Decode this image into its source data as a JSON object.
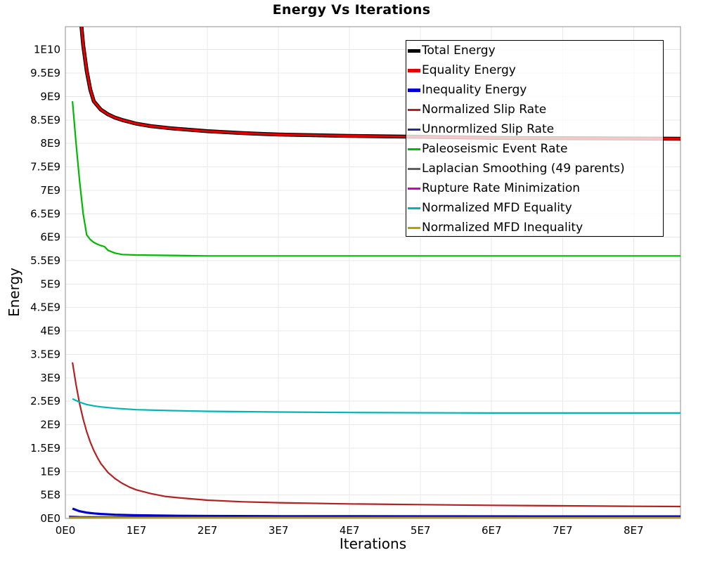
{
  "window": {
    "background": "#ffffff"
  },
  "chart_data": {
    "type": "line",
    "title": "Energy Vs Iterations",
    "xlabel": "Iterations",
    "ylabel": "Energy",
    "xlim": [
      0,
      86600000.0
    ],
    "ylim": [
      0,
      10490000000.0
    ],
    "grid": true,
    "grid_color": "#e8e8e8",
    "border_color": "#909090",
    "legend_position": "top-right",
    "legend_border_color": "#000000",
    "x_ticks": [
      {
        "v": 0,
        "label": "0E0"
      },
      {
        "v": 10000000.0,
        "label": "1E7"
      },
      {
        "v": 20000000.0,
        "label": "2E7"
      },
      {
        "v": 30000000.0,
        "label": "3E7"
      },
      {
        "v": 40000000.0,
        "label": "4E7"
      },
      {
        "v": 50000000.0,
        "label": "5E7"
      },
      {
        "v": 60000000.0,
        "label": "6E7"
      },
      {
        "v": 70000000.0,
        "label": "7E7"
      },
      {
        "v": 80000000.0,
        "label": "8E7"
      }
    ],
    "y_ticks": [
      {
        "v": 0,
        "label": "0E0"
      },
      {
        "v": 500000000.0,
        "label": "5E8"
      },
      {
        "v": 1000000000.0,
        "label": "1E9"
      },
      {
        "v": 1500000000.0,
        "label": "1.5E9"
      },
      {
        "v": 2000000000.0,
        "label": "2E9"
      },
      {
        "v": 2500000000.0,
        "label": "2.5E9"
      },
      {
        "v": 3000000000.0,
        "label": "3E9"
      },
      {
        "v": 3500000000.0,
        "label": "3.5E9"
      },
      {
        "v": 4000000000.0,
        "label": "4E9"
      },
      {
        "v": 4500000000.0,
        "label": "4.5E9"
      },
      {
        "v": 5000000000.0,
        "label": "5E9"
      },
      {
        "v": 5500000000.0,
        "label": "5.5E9"
      },
      {
        "v": 6000000000.0,
        "label": "6E9"
      },
      {
        "v": 6500000000.0,
        "label": "6.5E9"
      },
      {
        "v": 7000000000.0,
        "label": "7E9"
      },
      {
        "v": 7500000000.0,
        "label": "7.5E9"
      },
      {
        "v": 8000000000.0,
        "label": "8E9"
      },
      {
        "v": 8500000000.0,
        "label": "8.5E9"
      },
      {
        "v": 9000000000.0,
        "label": "9E9"
      },
      {
        "v": 9500000000.0,
        "label": "9.5E9"
      },
      {
        "v": 10000000000.0,
        "label": "1E10"
      }
    ],
    "series": [
      {
        "name": "Total Energy",
        "color": "#000000",
        "line_width": 5.5,
        "legend_thick": true,
        "points": [
          [
            2200000.0,
            10600000000.0
          ],
          [
            2500000.0,
            10100000000.0
          ],
          [
            3000000.0,
            9550000000.0
          ],
          [
            3500000.0,
            9150000000.0
          ],
          [
            4000000.0,
            8900000000.0
          ],
          [
            5000000.0,
            8720000000.0
          ],
          [
            6000000.0,
            8620000000.0
          ],
          [
            7000000.0,
            8550000000.0
          ],
          [
            8000000.0,
            8500000000.0
          ],
          [
            10000000.0,
            8420000000.0
          ],
          [
            12000000.0,
            8370000000.0
          ],
          [
            15000000.0,
            8320000000.0
          ],
          [
            20000000.0,
            8260000000.0
          ],
          [
            25000000.0,
            8220000000.0
          ],
          [
            30000000.0,
            8190000000.0
          ],
          [
            40000000.0,
            8160000000.0
          ],
          [
            50000000.0,
            8140000000.0
          ],
          [
            60000000.0,
            8120000000.0
          ],
          [
            70000000.0,
            8110000000.0
          ],
          [
            86600000.0,
            8100000000.0
          ]
        ]
      },
      {
        "name": "Equality Energy",
        "color": "#e60000",
        "line_width": 3.2,
        "legend_thick": true,
        "points": [
          [
            2200000.0,
            10600000000.0
          ],
          [
            2500000.0,
            10100000000.0
          ],
          [
            3000000.0,
            9550000000.0
          ],
          [
            3500000.0,
            9150000000.0
          ],
          [
            4000000.0,
            8900000000.0
          ],
          [
            5000000.0,
            8720000000.0
          ],
          [
            6000000.0,
            8620000000.0
          ],
          [
            7000000.0,
            8550000000.0
          ],
          [
            8000000.0,
            8500000000.0
          ],
          [
            10000000.0,
            8420000000.0
          ],
          [
            12000000.0,
            8370000000.0
          ],
          [
            15000000.0,
            8320000000.0
          ],
          [
            20000000.0,
            8260000000.0
          ],
          [
            25000000.0,
            8220000000.0
          ],
          [
            30000000.0,
            8190000000.0
          ],
          [
            40000000.0,
            8160000000.0
          ],
          [
            50000000.0,
            8140000000.0
          ],
          [
            60000000.0,
            8120000000.0
          ],
          [
            70000000.0,
            8110000000.0
          ],
          [
            86600000.0,
            8100000000.0
          ]
        ]
      },
      {
        "name": "Inequality Energy",
        "color": "#0000cd",
        "line_width": 3.2,
        "legend_thick": true,
        "points": [
          [
            1000000.0,
            210000000.0
          ],
          [
            2000000.0,
            155000000.0
          ],
          [
            3000000.0,
            125000000.0
          ],
          [
            4000000.0,
            108000000.0
          ],
          [
            5000000.0,
            96000000.0
          ],
          [
            7000000.0,
            80000000.0
          ],
          [
            10000000.0,
            68000000.0
          ],
          [
            15000000.0,
            58000000.0
          ],
          [
            20000000.0,
            53000000.0
          ],
          [
            30000000.0,
            48000000.0
          ],
          [
            50000000.0,
            45000000.0
          ],
          [
            86600000.0,
            44000000.0
          ]
        ]
      },
      {
        "name": "Normalized Slip Rate",
        "color": "#b22222",
        "line_width": 2.2,
        "legend_thick": false,
        "points": [
          [
            1000000.0,
            3330000000.0
          ],
          [
            1500000.0,
            2850000000.0
          ],
          [
            2000000.0,
            2450000000.0
          ],
          [
            2500000.0,
            2120000000.0
          ],
          [
            3000000.0,
            1850000000.0
          ],
          [
            3500000.0,
            1630000000.0
          ],
          [
            4000000.0,
            1450000000.0
          ],
          [
            4500000.0,
            1300000000.0
          ],
          [
            5000000.0,
            1170000000.0
          ],
          [
            6000000.0,
            980000000.0
          ],
          [
            7000000.0,
            850000000.0
          ],
          [
            8000000.0,
            750000000.0
          ],
          [
            9000000.0,
            670000000.0
          ],
          [
            10000000.0,
            610000000.0
          ],
          [
            12000000.0,
            530000000.0
          ],
          [
            14000000.0,
            470000000.0
          ],
          [
            16000000.0,
            440000000.0
          ],
          [
            20000000.0,
            390000000.0
          ],
          [
            25000000.0,
            355000000.0
          ],
          [
            30000000.0,
            335000000.0
          ],
          [
            40000000.0,
            310000000.0
          ],
          [
            50000000.0,
            295000000.0
          ],
          [
            60000000.0,
            280000000.0
          ],
          [
            70000000.0,
            270000000.0
          ],
          [
            80000000.0,
            260000000.0
          ],
          [
            86600000.0,
            255000000.0
          ]
        ]
      },
      {
        "name": "Unnormlized Slip Rate",
        "color": "#28289b",
        "line_width": 2.2,
        "legend_thick": false,
        "points": [
          [
            500000.0,
            45000000.0
          ],
          [
            2000000.0,
            36000000.0
          ],
          [
            5000000.0,
            32000000.0
          ],
          [
            10000000.0,
            30000000.0
          ],
          [
            86600000.0,
            28000000.0
          ]
        ]
      },
      {
        "name": "Paleoseismic Event Rate",
        "color": "#00b900",
        "line_width": 2.2,
        "legend_thick": false,
        "points": [
          [
            1000000.0,
            8900000000.0
          ],
          [
            1500000.0,
            8000000000.0
          ],
          [
            2000000.0,
            7200000000.0
          ],
          [
            2500000.0,
            6500000000.0
          ],
          [
            3000000.0,
            6050000000.0
          ],
          [
            3500000.0,
            5950000000.0
          ],
          [
            4000000.0,
            5890000000.0
          ],
          [
            4500000.0,
            5850000000.0
          ],
          [
            5000000.0,
            5820000000.0
          ],
          [
            5500000.0,
            5800000000.0
          ],
          [
            6000000.0,
            5720000000.0
          ],
          [
            7000000.0,
            5660000000.0
          ],
          [
            8000000.0,
            5630000000.0
          ],
          [
            10000000.0,
            5620000000.0
          ],
          [
            15000000.0,
            5610000000.0
          ],
          [
            20000000.0,
            5600000000.0
          ],
          [
            86600000.0,
            5600000000.0
          ]
        ]
      },
      {
        "name": "Laplacian Smoothing (49 parents)",
        "color": "#606060",
        "line_width": 2.2,
        "legend_thick": false,
        "points": [
          [
            500000.0,
            15000000.0
          ],
          [
            86600000.0,
            10000000.0
          ]
        ]
      },
      {
        "name": "Rupture Rate Minimization",
        "color": "#c400c4",
        "line_width": 2.2,
        "legend_thick": false,
        "points": [
          [
            500000.0,
            6000000.0
          ],
          [
            86600000.0,
            4000000.0
          ]
        ]
      },
      {
        "name": "Normalized MFD Equality",
        "color": "#00b5b5",
        "line_width": 2.2,
        "legend_thick": false,
        "points": [
          [
            1000000.0,
            2550000000.0
          ],
          [
            2000000.0,
            2480000000.0
          ],
          [
            3000000.0,
            2430000000.0
          ],
          [
            4000000.0,
            2400000000.0
          ],
          [
            5000000.0,
            2380000000.0
          ],
          [
            7000000.0,
            2350000000.0
          ],
          [
            10000000.0,
            2320000000.0
          ],
          [
            15000000.0,
            2300000000.0
          ],
          [
            20000000.0,
            2285000000.0
          ],
          [
            30000000.0,
            2270000000.0
          ],
          [
            40000000.0,
            2260000000.0
          ],
          [
            60000000.0,
            2250000000.0
          ],
          [
            86600000.0,
            2250000000.0
          ]
        ]
      },
      {
        "name": "Normalized MFD Inequality",
        "color": "#b5a000",
        "line_width": 2.2,
        "legend_thick": false,
        "points": [
          [
            500000.0,
            20000000.0
          ],
          [
            5000000.0,
            16000000.0
          ],
          [
            86600000.0,
            14000000.0
          ]
        ]
      }
    ]
  }
}
